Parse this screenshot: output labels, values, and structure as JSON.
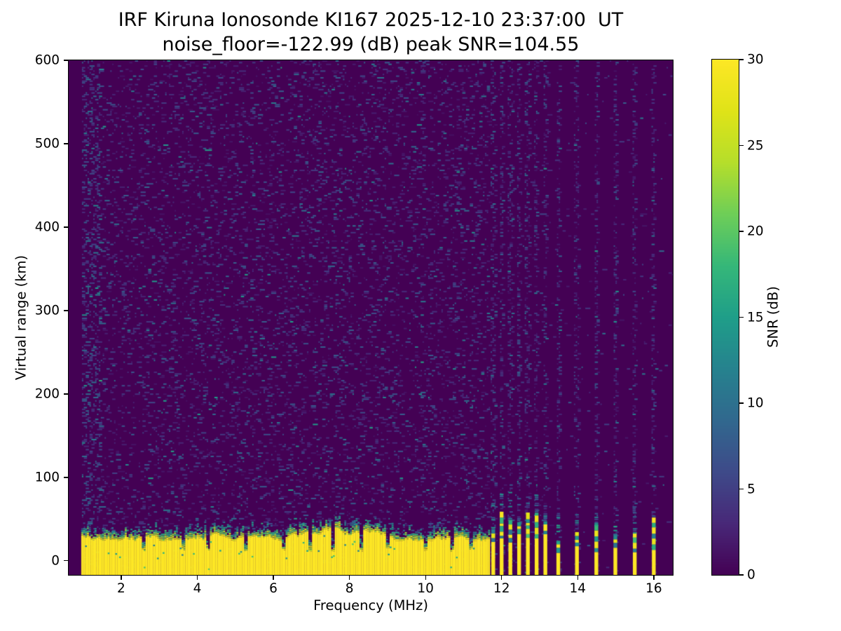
{
  "chart_data": {
    "type": "heatmap",
    "title": "IRF Kiruna Ionosonde KI167 2025-12-10 23:37:00  UT",
    "subtitle": "noise_floor=-122.99 (dB) peak SNR=104.55",
    "xlabel": "Frequency (MHz)",
    "ylabel": "Virtual range (km)",
    "x_range": [
      0.62,
      16.5
    ],
    "y_range": [
      -17,
      600
    ],
    "x_ticks": [
      2,
      4,
      6,
      8,
      10,
      12,
      14,
      16
    ],
    "y_ticks": [
      0,
      100,
      200,
      300,
      400,
      500,
      600
    ],
    "values_shown": {
      "noise_floor_db": -122.99,
      "peak_snr_db": 104.55,
      "timestamp_ut": "2025-12-10 23:37:00",
      "station": "KI167"
    },
    "colorbar": {
      "label": "SNR (dB)",
      "vmin": 0,
      "vmax": 30,
      "ticks": [
        0,
        5,
        10,
        15,
        20,
        25,
        30
      ],
      "colormap": "viridis",
      "stops": [
        "#440154",
        "#482878",
        "#3e4a89",
        "#31688e",
        "#26828e",
        "#1f9e89",
        "#35b779",
        "#6ece58",
        "#b5de2b",
        "#dfe318",
        "#fde725"
      ]
    },
    "heatmap_model": {
      "seed": 20251210,
      "signal_start_mhz": 0.95,
      "continuous_band_end_mhz": 11.65,
      "clutter_top_km": 32,
      "clutter_top_min_km": 24,
      "clutter_top_max_km": 42,
      "clutter_transition_km": 13,
      "notch_freqs_mhz": [
        2.6,
        3.65,
        4.28,
        5.3,
        6.25,
        6.95,
        7.55,
        8.3,
        9.0,
        10.0,
        10.7,
        11.2
      ],
      "stripe_freqs_mhz": [
        11.78,
        12.0,
        12.23,
        12.46,
        12.69,
        12.92,
        13.15,
        13.49,
        13.98,
        14.49,
        14.99,
        15.5,
        16.0
      ],
      "noise_density": 0.115,
      "left_edge_dense_until_mhz": 1.45,
      "stripe_noise_density": 0.28,
      "mid_gap_density": 0.025,
      "sparse_gap_density": 0.007
    }
  }
}
